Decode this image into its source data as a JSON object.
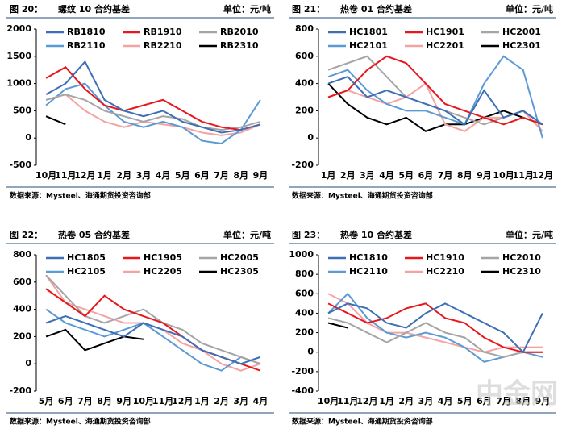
{
  "chart_data": [
    {
      "type": "line",
      "figure": "图 20：",
      "title": "螺纹 10 合约基差",
      "unit": "单位：元/吨",
      "source": "数据来源：Mysteel、海通期货投资咨询部",
      "categories": [
        "10月",
        "11月",
        "12月",
        "1月",
        "2月",
        "3月",
        "4月",
        "5月",
        "6月",
        "7月",
        "8月",
        "9月"
      ],
      "ylim": [
        -500,
        2000
      ],
      "yticks": [
        -500,
        0,
        500,
        1000,
        1500,
        2000
      ],
      "series": [
        {
          "name": "RB1810",
          "color": "#3d6fb6",
          "values": [
            800,
            1000,
            1400,
            700,
            500,
            400,
            500,
            300,
            200,
            100,
            150,
            250
          ]
        },
        {
          "name": "RB1910",
          "color": "#e8171c",
          "values": [
            1100,
            1300,
            900,
            600,
            500,
            600,
            700,
            500,
            300,
            200,
            150,
            250
          ]
        },
        {
          "name": "RB2010",
          "color": "#a5a5a5",
          "values": [
            700,
            800,
            700,
            500,
            400,
            300,
            400,
            350,
            200,
            150,
            200,
            300
          ]
        },
        {
          "name": "RB2110",
          "color": "#5b9bd5",
          "values": [
            600,
            900,
            1000,
            600,
            300,
            200,
            300,
            200,
            -50,
            -100,
            150,
            700
          ]
        },
        {
          "name": "RB2210",
          "color": "#f4a3a3",
          "values": [
            700,
            800,
            500,
            300,
            200,
            300,
            250,
            200,
            100,
            50,
            100,
            250
          ]
        },
        {
          "name": "RB2310",
          "color": "#000000",
          "values": [
            400,
            250,
            null,
            null,
            null,
            null,
            null,
            null,
            null,
            null,
            null,
            null
          ]
        }
      ]
    },
    {
      "type": "line",
      "figure": "图 21：",
      "title": "热卷 01 合约基差",
      "unit": "单位：元/吨",
      "source": "数据来源：Mysteel、海通期货投资咨询部",
      "categories": [
        "1月",
        "2月",
        "3月",
        "4月",
        "5月",
        "6月",
        "7月",
        "8月",
        "9月",
        "10月",
        "11月",
        "12月"
      ],
      "ylim": [
        -200,
        800
      ],
      "yticks": [
        -200,
        0,
        200,
        400,
        600,
        800
      ],
      "series": [
        {
          "name": "HC1801",
          "color": "#3d6fb6",
          "values": [
            400,
            450,
            300,
            350,
            300,
            250,
            200,
            100,
            350,
            150,
            200,
            100
          ]
        },
        {
          "name": "HC1901",
          "color": "#e8171c",
          "values": [
            300,
            350,
            500,
            600,
            550,
            400,
            250,
            200,
            150,
            100,
            150,
            100
          ]
        },
        {
          "name": "HC2001",
          "color": "#a5a5a5",
          "values": [
            500,
            550,
            600,
            450,
            300,
            250,
            200,
            150,
            100,
            150,
            200,
            100
          ]
        },
        {
          "name": "HC2101",
          "color": "#5b9bd5",
          "values": [
            450,
            500,
            350,
            250,
            200,
            200,
            150,
            100,
            400,
            600,
            500,
            0
          ]
        },
        {
          "name": "HC2201",
          "color": "#f4a3a3",
          "values": [
            300,
            350,
            300,
            250,
            300,
            400,
            100,
            50,
            150,
            150,
            200,
            50
          ]
        },
        {
          "name": "HC2301",
          "color": "#000000",
          "values": [
            400,
            250,
            150,
            100,
            150,
            50,
            100,
            100,
            150,
            200,
            150,
            100
          ]
        }
      ]
    },
    {
      "type": "line",
      "figure": "图 22：",
      "title": "热卷 05 合约基差",
      "unit": "单位：元/吨",
      "source": "数据来源：Mysteel、海通期货投资咨询部",
      "categories": [
        "5月",
        "6月",
        "7月",
        "8月",
        "9月",
        "10月",
        "11月",
        "12月",
        "1月",
        "2月",
        "3月",
        "4月"
      ],
      "ylim": [
        -200,
        800
      ],
      "yticks": [
        -200,
        0,
        200,
        400,
        600,
        800
      ],
      "series": [
        {
          "name": "HC1805",
          "color": "#3d6fb6",
          "values": [
            300,
            350,
            300,
            250,
            200,
            300,
            250,
            200,
            100,
            50,
            0,
            50
          ]
        },
        {
          "name": "HC1905",
          "color": "#e8171c",
          "values": [
            550,
            450,
            350,
            500,
            400,
            350,
            300,
            200,
            100,
            50,
            0,
            -50
          ]
        },
        {
          "name": "HC2005",
          "color": "#a5a5a5",
          "values": [
            650,
            500,
            350,
            300,
            350,
            400,
            300,
            250,
            150,
            100,
            50,
            0
          ]
        },
        {
          "name": "HC2105",
          "color": "#5b9bd5",
          "values": [
            400,
            300,
            250,
            200,
            250,
            300,
            200,
            100,
            0,
            -50,
            50,
            0
          ]
        },
        {
          "name": "HC2205",
          "color": "#f4a3a3",
          "values": [
            650,
            450,
            400,
            350,
            300,
            300,
            250,
            150,
            100,
            0,
            -50,
            0
          ]
        },
        {
          "name": "HC2305",
          "color": "#000000",
          "values": [
            200,
            250,
            100,
            150,
            200,
            180,
            null,
            null,
            null,
            null,
            null,
            null
          ]
        }
      ]
    },
    {
      "type": "line",
      "figure": "图 23：",
      "title": "热卷 10 合约基差",
      "unit": "单位：元/吨",
      "source": "数据来源：Mysteel、海通期货投资咨询部",
      "categories": [
        "10月",
        "11月",
        "12月",
        "1月",
        "2月",
        "3月",
        "4月",
        "5月",
        "6月",
        "7月",
        "8月",
        "9月"
      ],
      "ylim": [
        -400,
        1000
      ],
      "yticks": [
        -400,
        -200,
        0,
        200,
        400,
        600,
        800,
        1000
      ],
      "series": [
        {
          "name": "HC1810",
          "color": "#3d6fb6",
          "values": [
            400,
            500,
            450,
            300,
            250,
            400,
            500,
            400,
            300,
            200,
            0,
            400
          ]
        },
        {
          "name": "HC1910",
          "color": "#e8171c",
          "values": [
            500,
            400,
            300,
            350,
            450,
            500,
            350,
            300,
            150,
            50,
            0,
            0
          ]
        },
        {
          "name": "HC2010",
          "color": "#a5a5a5",
          "values": [
            350,
            300,
            200,
            100,
            200,
            300,
            200,
            150,
            0,
            -50,
            0,
            0
          ]
        },
        {
          "name": "HC2110",
          "color": "#5b9bd5",
          "values": [
            400,
            600,
            350,
            200,
            150,
            200,
            150,
            50,
            -100,
            -50,
            0,
            -50
          ]
        },
        {
          "name": "HC2210",
          "color": "#f4a3a3",
          "values": [
            600,
            500,
            300,
            200,
            200,
            150,
            100,
            50,
            0,
            50,
            50,
            50
          ]
        },
        {
          "name": "HC2310",
          "color": "#000000",
          "values": [
            300,
            250,
            null,
            null,
            null,
            null,
            null,
            null,
            null,
            null,
            null,
            null
          ]
        }
      ]
    }
  ],
  "watermark": "中金网"
}
